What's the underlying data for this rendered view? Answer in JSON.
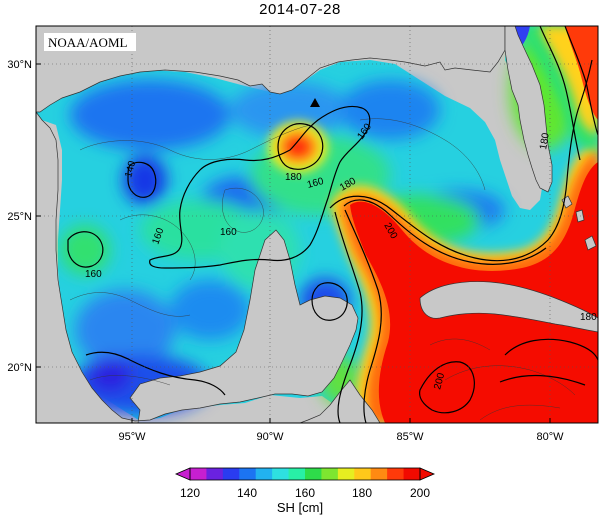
{
  "title": "2014-07-28",
  "credit": "NOAA/AOML",
  "lat_labels": [
    "30°N",
    "25°N",
    "20°N"
  ],
  "lon_labels": [
    "95°W",
    "90°W",
    "85°W",
    "80°W"
  ],
  "contour_labels": [
    "140",
    "160",
    "160",
    "180",
    "160",
    "180",
    "160",
    "180",
    "160",
    "200",
    "200",
    "180"
  ],
  "colorbar": {
    "label": "SH [cm]",
    "ticks": [
      "120",
      "140",
      "160",
      "180",
      "200"
    ],
    "colors": [
      "#c71fd0",
      "#6a22e0",
      "#2a3cf0",
      "#1c74f2",
      "#22b2f0",
      "#2ee0e0",
      "#28f0a6",
      "#2edc4a",
      "#7ee630",
      "#e6ee20",
      "#ffc81a",
      "#ff8a12",
      "#ff3a0a",
      "#f20a00"
    ]
  },
  "colors": {
    "land": "#c8c8c8",
    "coast": "#333333",
    "water_low": "#1c64f0",
    "water_mid": "#26c8e8",
    "water_high": "#34e27c",
    "loop_current": "#ff1a00",
    "contour": "#000000"
  },
  "markers": [
    {
      "name": "triangle-marker"
    }
  ]
}
